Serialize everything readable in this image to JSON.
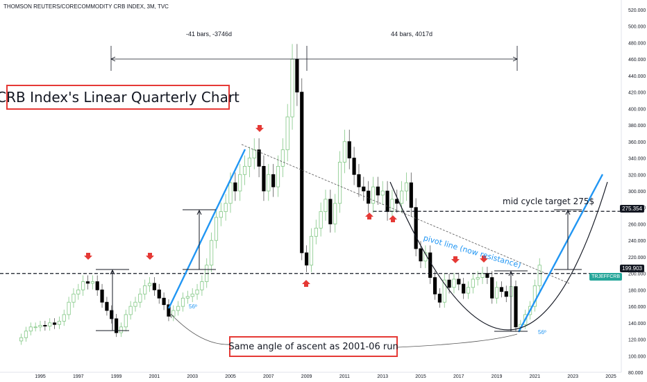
{
  "source_label": "THOMSON REUTERS/CORECOMMODITY CRB INDEX, 3M, TVC",
  "title": "CRB Index's Linear Quarterly Chart",
  "note": "Same angle of ascent as 2001-06 run",
  "span_left_label": "-41 bars, -3746d",
  "span_right_label": "44 bars, 4017d",
  "target_label": "mid cycle target 275$",
  "pivot_label": "pivot line (now resistance)",
  "angle_label": "56º",
  "price_tags": {
    "resistance": "199.903",
    "target": "275.354",
    "symbol": "TRJEFFCRB"
  },
  "colors": {
    "up": "#81c784",
    "down": "#000000",
    "accent": "#2196f3",
    "marker": "#e53935"
  },
  "chart_data": {
    "type": "candlestick",
    "xlabel": "",
    "ylabel": "",
    "ylim": [
      80,
      520
    ],
    "xlim": [
      1993.5,
      2025.5
    ],
    "x_ticks": [
      1995,
      1997,
      1999,
      2001,
      2003,
      2005,
      2007,
      2009,
      2011,
      2013,
      2015,
      2017,
      2019,
      2021,
      2023,
      2025
    ],
    "y_ticks": [
      80,
      100,
      120,
      140,
      160,
      180,
      200,
      220,
      240,
      260,
      280,
      300,
      320,
      340,
      360,
      380,
      400,
      420,
      440,
      460,
      480,
      500,
      520
    ],
    "y_tick_labels": [
      "80.000",
      "100.000",
      "120.000",
      "140.000",
      "160.000",
      "180.000",
      "200.000",
      "220.000",
      "240.000",
      "260.000",
      "280.000",
      "300.000",
      "320.000",
      "340.000",
      "360.000",
      "380.000",
      "400.000",
      "420.000",
      "440.000",
      "460.000",
      "480.000",
      "500.000",
      "520.000"
    ],
    "levels": {
      "resistance": 199.903,
      "target": 275.354
    },
    "grid": false,
    "candles_close": [
      [
        1993.75,
        118
      ],
      [
        1994.0,
        122
      ],
      [
        1994.25,
        130
      ],
      [
        1994.5,
        135
      ],
      [
        1994.75,
        135
      ],
      [
        1995.0,
        137
      ],
      [
        1995.25,
        136
      ],
      [
        1995.5,
        140
      ],
      [
        1995.75,
        138
      ],
      [
        1996.0,
        142
      ],
      [
        1996.25,
        150
      ],
      [
        1996.5,
        165
      ],
      [
        1996.75,
        175
      ],
      [
        1997.0,
        180
      ],
      [
        1997.25,
        190
      ],
      [
        1997.5,
        188
      ],
      [
        1997.75,
        190
      ],
      [
        1998.0,
        180
      ],
      [
        1998.25,
        165
      ],
      [
        1998.5,
        155
      ],
      [
        1998.75,
        145
      ],
      [
        1999.0,
        128
      ],
      [
        1999.25,
        135
      ],
      [
        1999.5,
        150
      ],
      [
        1999.75,
        160
      ],
      [
        2000.0,
        165
      ],
      [
        2000.25,
        175
      ],
      [
        2000.5,
        185
      ],
      [
        2000.75,
        188
      ],
      [
        2001.0,
        180
      ],
      [
        2001.25,
        170
      ],
      [
        2001.5,
        162
      ],
      [
        2001.75,
        148
      ],
      [
        2002.0,
        155
      ],
      [
        2002.25,
        160
      ],
      [
        2002.5,
        170
      ],
      [
        2002.75,
        172
      ],
      [
        2003.0,
        175
      ],
      [
        2003.25,
        180
      ],
      [
        2003.5,
        190
      ],
      [
        2003.75,
        210
      ],
      [
        2004.0,
        240
      ],
      [
        2004.25,
        268
      ],
      [
        2004.5,
        275
      ],
      [
        2004.75,
        285
      ],
      [
        2005.0,
        310
      ],
      [
        2005.25,
        300
      ],
      [
        2005.5,
        320
      ],
      [
        2005.75,
        330
      ],
      [
        2006.0,
        340
      ],
      [
        2006.25,
        350
      ],
      [
        2006.5,
        330
      ],
      [
        2006.75,
        300
      ],
      [
        2007.0,
        320
      ],
      [
        2007.25,
        305
      ],
      [
        2007.5,
        330
      ],
      [
        2007.75,
        350
      ],
      [
        2008.0,
        390
      ],
      [
        2008.25,
        460
      ],
      [
        2008.5,
        420
      ],
      [
        2008.75,
        225
      ],
      [
        2009.0,
        210
      ],
      [
        2009.25,
        245
      ],
      [
        2009.5,
        255
      ],
      [
        2009.75,
        275
      ],
      [
        2010.0,
        290
      ],
      [
        2010.25,
        260
      ],
      [
        2010.5,
        285
      ],
      [
        2010.75,
        335
      ],
      [
        2011.0,
        360
      ],
      [
        2011.25,
        340
      ],
      [
        2011.5,
        320
      ],
      [
        2011.75,
        305
      ],
      [
        2012.0,
        300
      ],
      [
        2012.25,
        285
      ],
      [
        2012.5,
        305
      ],
      [
        2012.75,
        295
      ],
      [
        2013.0,
        300
      ],
      [
        2013.25,
        275
      ],
      [
        2013.5,
        290
      ],
      [
        2013.75,
        285
      ],
      [
        2014.0,
        300
      ],
      [
        2014.25,
        310
      ],
      [
        2014.5,
        280
      ],
      [
        2014.75,
        230
      ],
      [
        2015.0,
        215
      ],
      [
        2015.25,
        225
      ],
      [
        2015.5,
        195
      ],
      [
        2015.75,
        175
      ],
      [
        2016.0,
        165
      ],
      [
        2016.25,
        192
      ],
      [
        2016.5,
        183
      ],
      [
        2016.75,
        193
      ],
      [
        2017.0,
        187
      ],
      [
        2017.25,
        176
      ],
      [
        2017.5,
        183
      ],
      [
        2017.75,
        193
      ],
      [
        2018.0,
        195
      ],
      [
        2018.25,
        200
      ],
      [
        2018.5,
        195
      ],
      [
        2018.75,
        170
      ],
      [
        2019.0,
        183
      ],
      [
        2019.25,
        178
      ],
      [
        2019.5,
        172
      ],
      [
        2019.75,
        184
      ],
      [
        2020.0,
        135
      ],
      [
        2020.25,
        138
      ],
      [
        2020.5,
        150
      ],
      [
        2020.75,
        160
      ],
      [
        2021.0,
        185
      ],
      [
        2021.25,
        210
      ]
    ]
  }
}
